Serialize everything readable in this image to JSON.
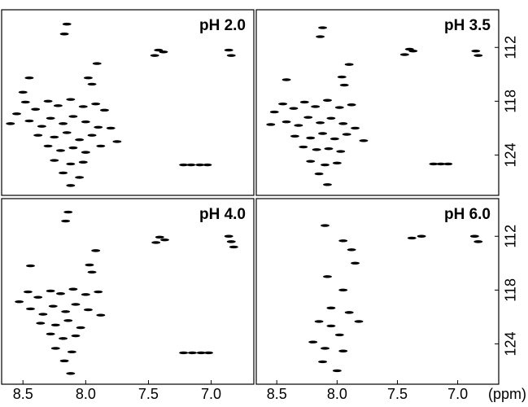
{
  "chart_data": [
    {
      "type": "scatter",
      "title": "pH 2.0",
      "color": "#000000",
      "xlim": [
        8.67,
        6.66
      ],
      "ylim": [
        107.8,
        128.5
      ],
      "y_inverted": true,
      "x": [
        8.15,
        8.17,
        7.91,
        7.98,
        7.95,
        7.42,
        7.45,
        7.38,
        6.86,
        6.84,
        8.45,
        7.22,
        7.16,
        7.09,
        7.03,
        8.55,
        8.48,
        8.4,
        8.3,
        8.22,
        8.12,
        8.02,
        7.92,
        7.85,
        8.45,
        8.35,
        8.28,
        8.18,
        8.1,
        8.0,
        7.9,
        7.8,
        8.38,
        8.25,
        8.15,
        8.05,
        7.95,
        8.3,
        8.2,
        8.1,
        8.0,
        7.88,
        8.25,
        8.12,
        8.02,
        8.18,
        8.05,
        8.12,
        8.5,
        8.6,
        7.75
      ],
      "values": [
        109.4,
        110.5,
        113.8,
        115.4,
        116.1,
        112.3,
        112.9,
        112.5,
        112.3,
        112.9,
        115.4,
        125.1,
        125.1,
        125.1,
        125.1,
        119.4,
        118.1,
        118.9,
        118.0,
        118.5,
        117.8,
        118.6,
        118.3,
        119.0,
        120.2,
        120.8,
        119.9,
        120.5,
        119.7,
        120.3,
        120.9,
        121.0,
        121.8,
        122.0,
        121.5,
        122.3,
        121.8,
        123.0,
        123.5,
        123.2,
        123.7,
        123.0,
        124.6,
        125.0,
        124.8,
        126.0,
        126.5,
        127.4,
        117.0,
        120.5,
        122.5
      ]
    },
    {
      "type": "scatter",
      "title": "pH 3.5",
      "color": "#000000",
      "xlim": [
        8.67,
        6.66
      ],
      "ylim": [
        107.8,
        128.5
      ],
      "y_inverted": true,
      "yticks": [
        112,
        118,
        124
      ],
      "x": [
        8.12,
        8.14,
        7.9,
        7.96,
        7.94,
        7.4,
        7.44,
        7.37,
        6.85,
        6.83,
        8.42,
        7.2,
        7.14,
        7.08,
        8.52,
        8.45,
        8.36,
        8.27,
        8.18,
        8.08,
        7.98,
        7.88,
        8.42,
        8.32,
        8.24,
        8.14,
        8.05,
        7.95,
        7.85,
        8.35,
        8.22,
        8.12,
        8.02,
        7.92,
        8.28,
        8.17,
        8.07,
        7.97,
        8.22,
        8.1,
        8.0,
        8.15,
        8.08,
        8.55,
        7.78
      ],
      "values": [
        109.8,
        110.8,
        113.9,
        115.3,
        116.2,
        112.2,
        112.8,
        112.4,
        112.4,
        112.9,
        115.6,
        125.0,
        125.0,
        125.0,
        119.2,
        118.3,
        118.8,
        118.1,
        118.6,
        117.9,
        118.7,
        118.4,
        120.3,
        120.7,
        119.8,
        120.4,
        119.9,
        120.5,
        121.0,
        121.9,
        122.1,
        121.6,
        122.2,
        121.7,
        123.1,
        123.4,
        123.3,
        123.6,
        124.7,
        125.1,
        124.9,
        126.1,
        127.3,
        120.6,
        122.4
      ]
    },
    {
      "type": "scatter",
      "title": "pH 4.0",
      "color": "#000000",
      "xlim": [
        8.67,
        6.66
      ],
      "ylim": [
        107.8,
        128.5
      ],
      "y_inverted": true,
      "xticks": [
        8.5,
        {
          "value": 8,
          "label": "8.0"
        },
        7.5,
        {
          "value": 7,
          "label": "7.0"
        }
      ],
      "x": [
        8.14,
        8.16,
        7.92,
        7.97,
        7.95,
        7.41,
        7.44,
        7.37,
        6.86,
        6.84,
        6.82,
        8.44,
        7.22,
        7.15,
        7.08,
        7.02,
        8.53,
        8.46,
        8.38,
        8.28,
        8.2,
        8.1,
        8.0,
        7.9,
        8.44,
        8.34,
        8.26,
        8.16,
        8.08,
        7.98,
        7.88,
        8.36,
        8.24,
        8.14,
        8.04,
        8.28,
        8.18,
        8.08,
        8.24,
        8.11,
        8.17,
        8.12
      ],
      "values": [
        109.3,
        110.3,
        113.6,
        115.2,
        116.0,
        112.1,
        112.7,
        112.4,
        112.0,
        112.6,
        113.2,
        115.3,
        125.0,
        125.0,
        125.0,
        125.0,
        119.3,
        118.2,
        118.8,
        118.1,
        118.4,
        117.9,
        118.5,
        118.2,
        120.1,
        120.7,
        119.8,
        120.4,
        119.6,
        120.2,
        120.8,
        121.7,
        121.9,
        121.4,
        122.2,
        122.9,
        123.4,
        123.1,
        124.5,
        124.9,
        125.9,
        127.3
      ]
    },
    {
      "type": "scatter",
      "title": "pH 6.0",
      "color": "#000000",
      "xlim": [
        8.67,
        6.66
      ],
      "ylim": [
        107.8,
        128.5
      ],
      "y_inverted": true,
      "xticks": [
        8.5,
        {
          "value": 8,
          "label": "8.0"
        },
        7.5,
        {
          "value": 7,
          "label": "7.0"
        }
      ],
      "yticks": [
        112,
        118,
        124
      ],
      "x_label": "(ppm)",
      "x": [
        8.1,
        7.95,
        7.88,
        7.85,
        7.38,
        7.3,
        6.86,
        6.83,
        8.08,
        7.95,
        8.05,
        7.9,
        8.15,
        8.05,
        7.98,
        8.2,
        8.1,
        7.95,
        8.12,
        8.0,
        7.82
      ],
      "values": [
        110.8,
        112.5,
        113.5,
        115.0,
        112.2,
        112.0,
        112.0,
        112.6,
        116.5,
        118.0,
        120.0,
        120.5,
        121.5,
        122.0,
        123.0,
        123.8,
        124.5,
        124.8,
        126.0,
        127.0,
        121.5
      ]
    }
  ]
}
